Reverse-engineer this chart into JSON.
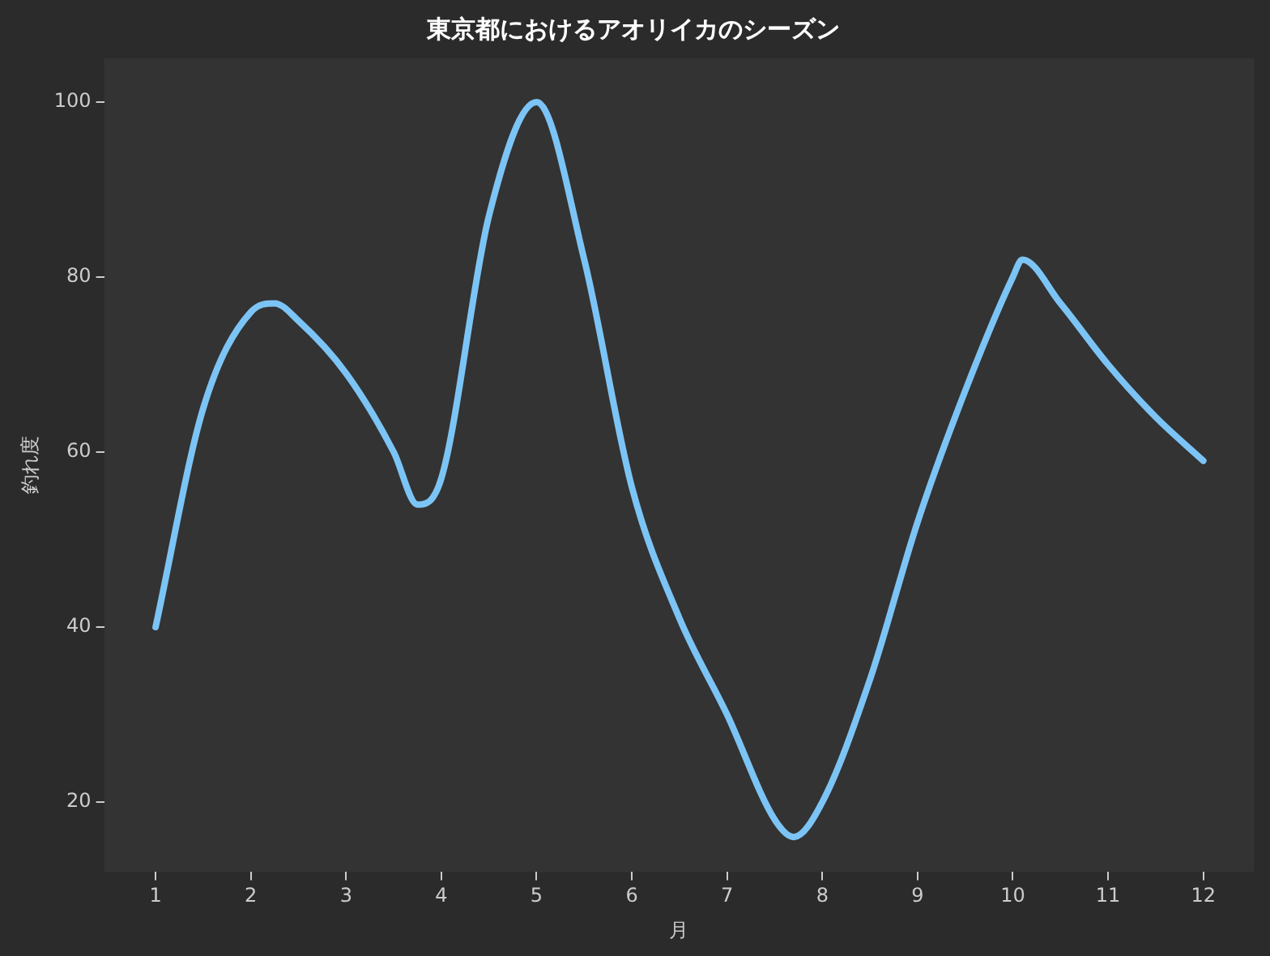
{
  "chart_data": {
    "type": "line",
    "title": "東京都におけるアオリイカのシーズン",
    "xlabel": "月",
    "ylabel": "釣れ度",
    "x": [
      1,
      1.5,
      2,
      2.25,
      2.5,
      3,
      3.5,
      3.75,
      4,
      4.5,
      5,
      5.5,
      6,
      6.5,
      7,
      7.5,
      7.7,
      8,
      8.5,
      9,
      9.5,
      10,
      10.1,
      10.5,
      11,
      11.5,
      12
    ],
    "series": [
      {
        "color": "#7cc4f5",
        "values": [
          40,
          65,
          76,
          77,
          75,
          69,
          60,
          54,
          57,
          87,
          100,
          82,
          56,
          41,
          30,
          18,
          16,
          20,
          34,
          52,
          67,
          80,
          82,
          77,
          70,
          64,
          59
        ]
      }
    ],
    "xlim": [
      0.46,
      12.53
    ],
    "xticks": [
      1,
      2,
      3,
      4,
      5,
      6,
      7,
      8,
      9,
      10,
      11,
      12
    ],
    "ylim": [
      12,
      105
    ],
    "yticks": [
      20,
      40,
      60,
      80,
      100
    ],
    "grid": false,
    "legend": false,
    "marker": "none",
    "line_style": "solid"
  }
}
